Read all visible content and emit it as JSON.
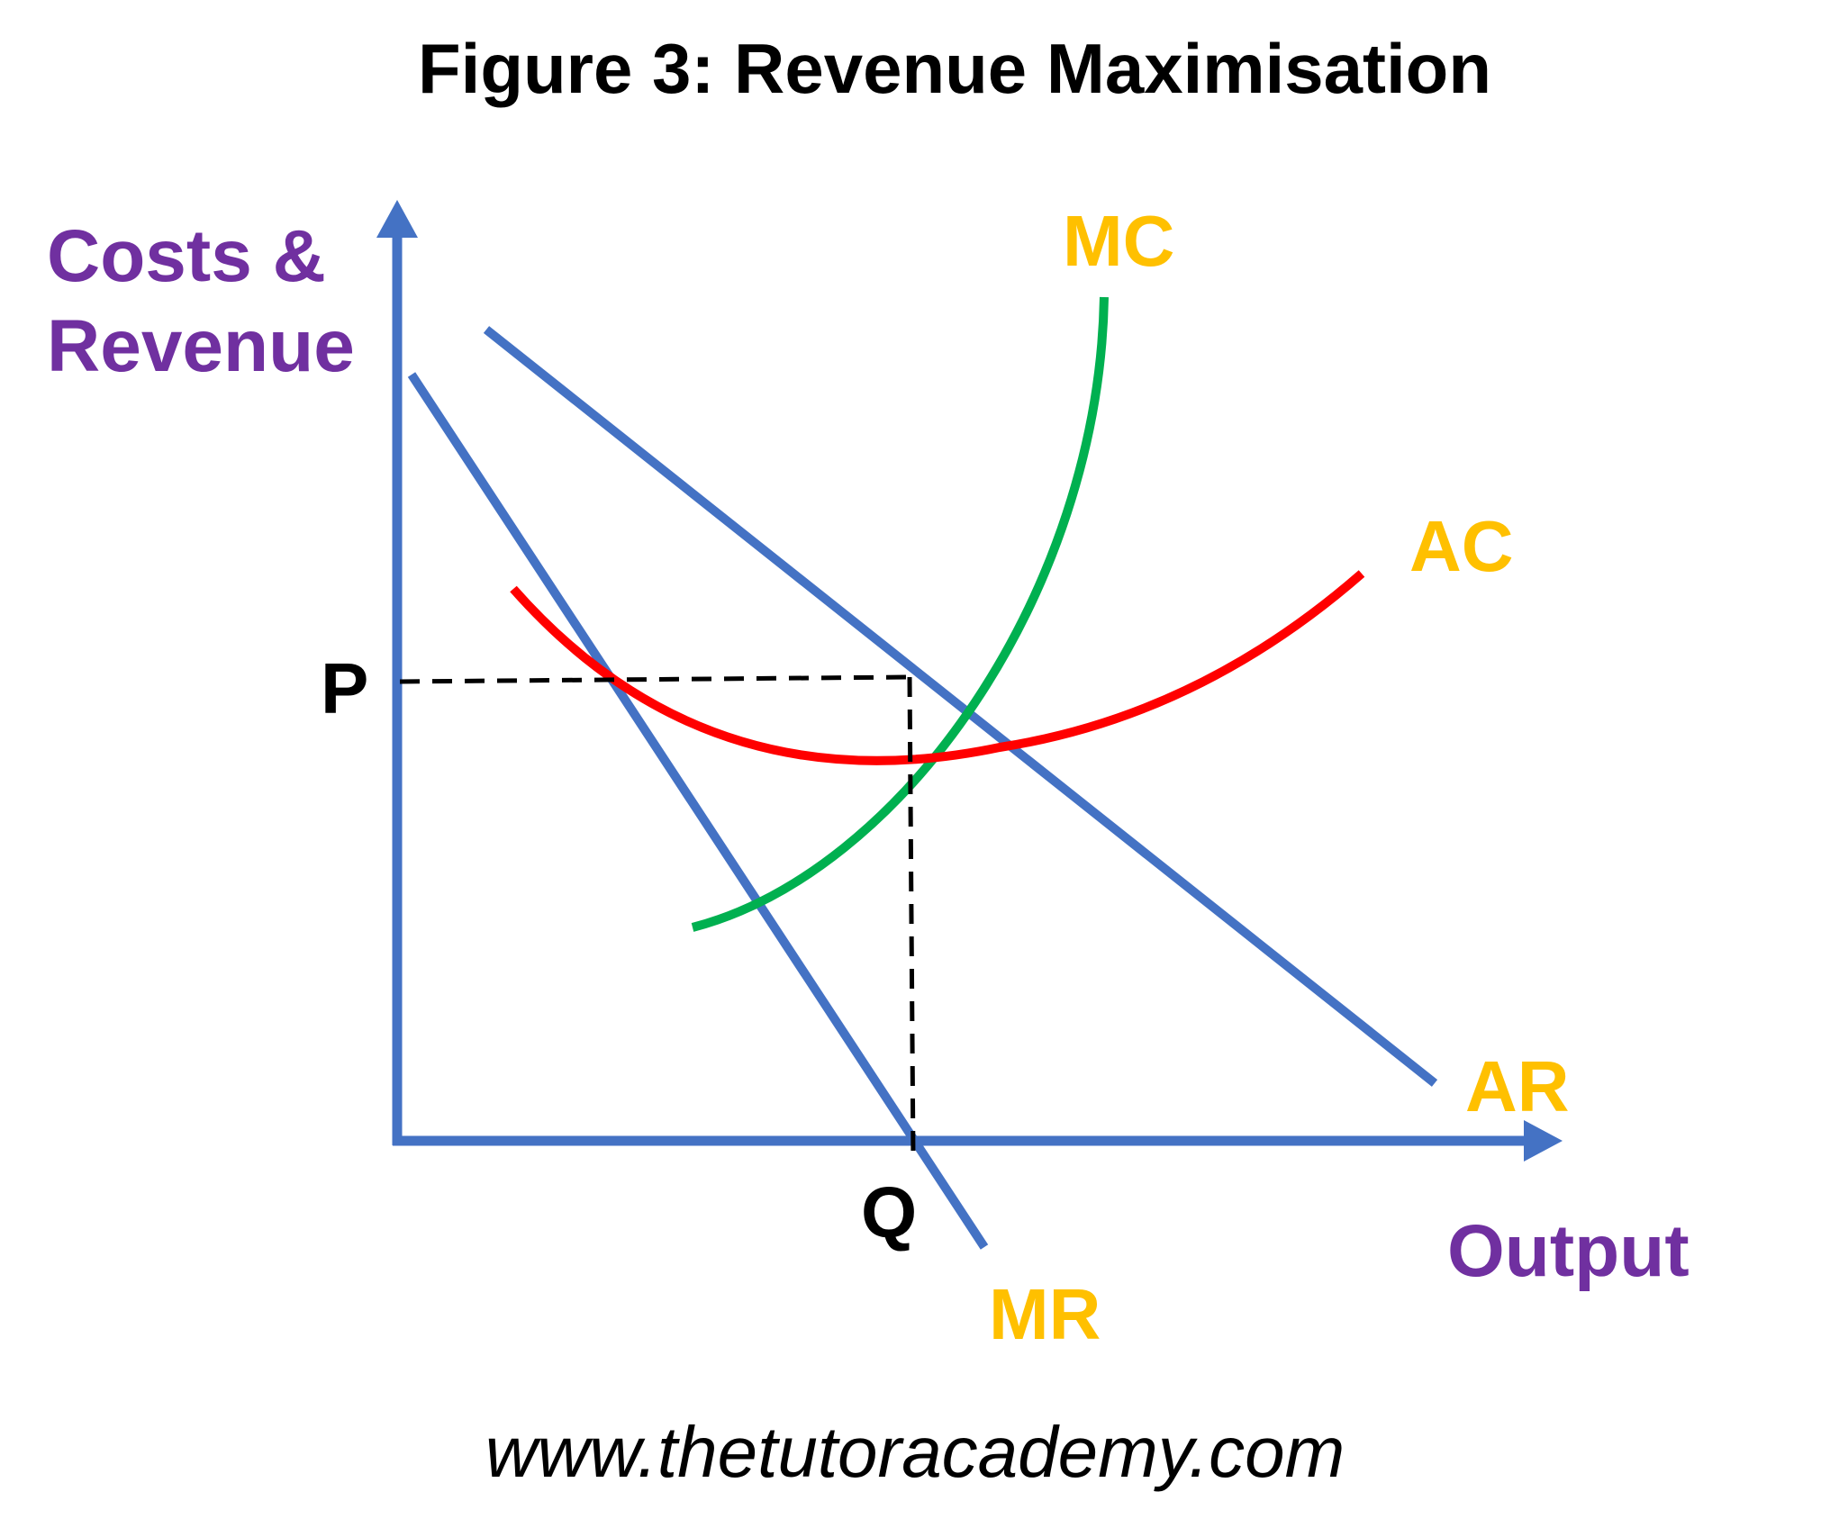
{
  "title": "Figure 3: Revenue Maximisation",
  "axes": {
    "y_label_line1": "Costs &",
    "y_label_line2": "Revenue",
    "x_label": "Output"
  },
  "curves": {
    "ar": "AR",
    "mr": "MR",
    "mc": "MC",
    "ac": "AC"
  },
  "points": {
    "price": "P",
    "quantity": "Q"
  },
  "footer": "www.thetutoracademy.com",
  "colors": {
    "axis": "#4472C4",
    "ar": "#4472C4",
    "mr": "#4472C4",
    "mc": "#00B050",
    "ac": "#FF0000",
    "curve_labels": "#FFC000",
    "axis_labels": "#7030A0",
    "guide": "#000000"
  }
}
